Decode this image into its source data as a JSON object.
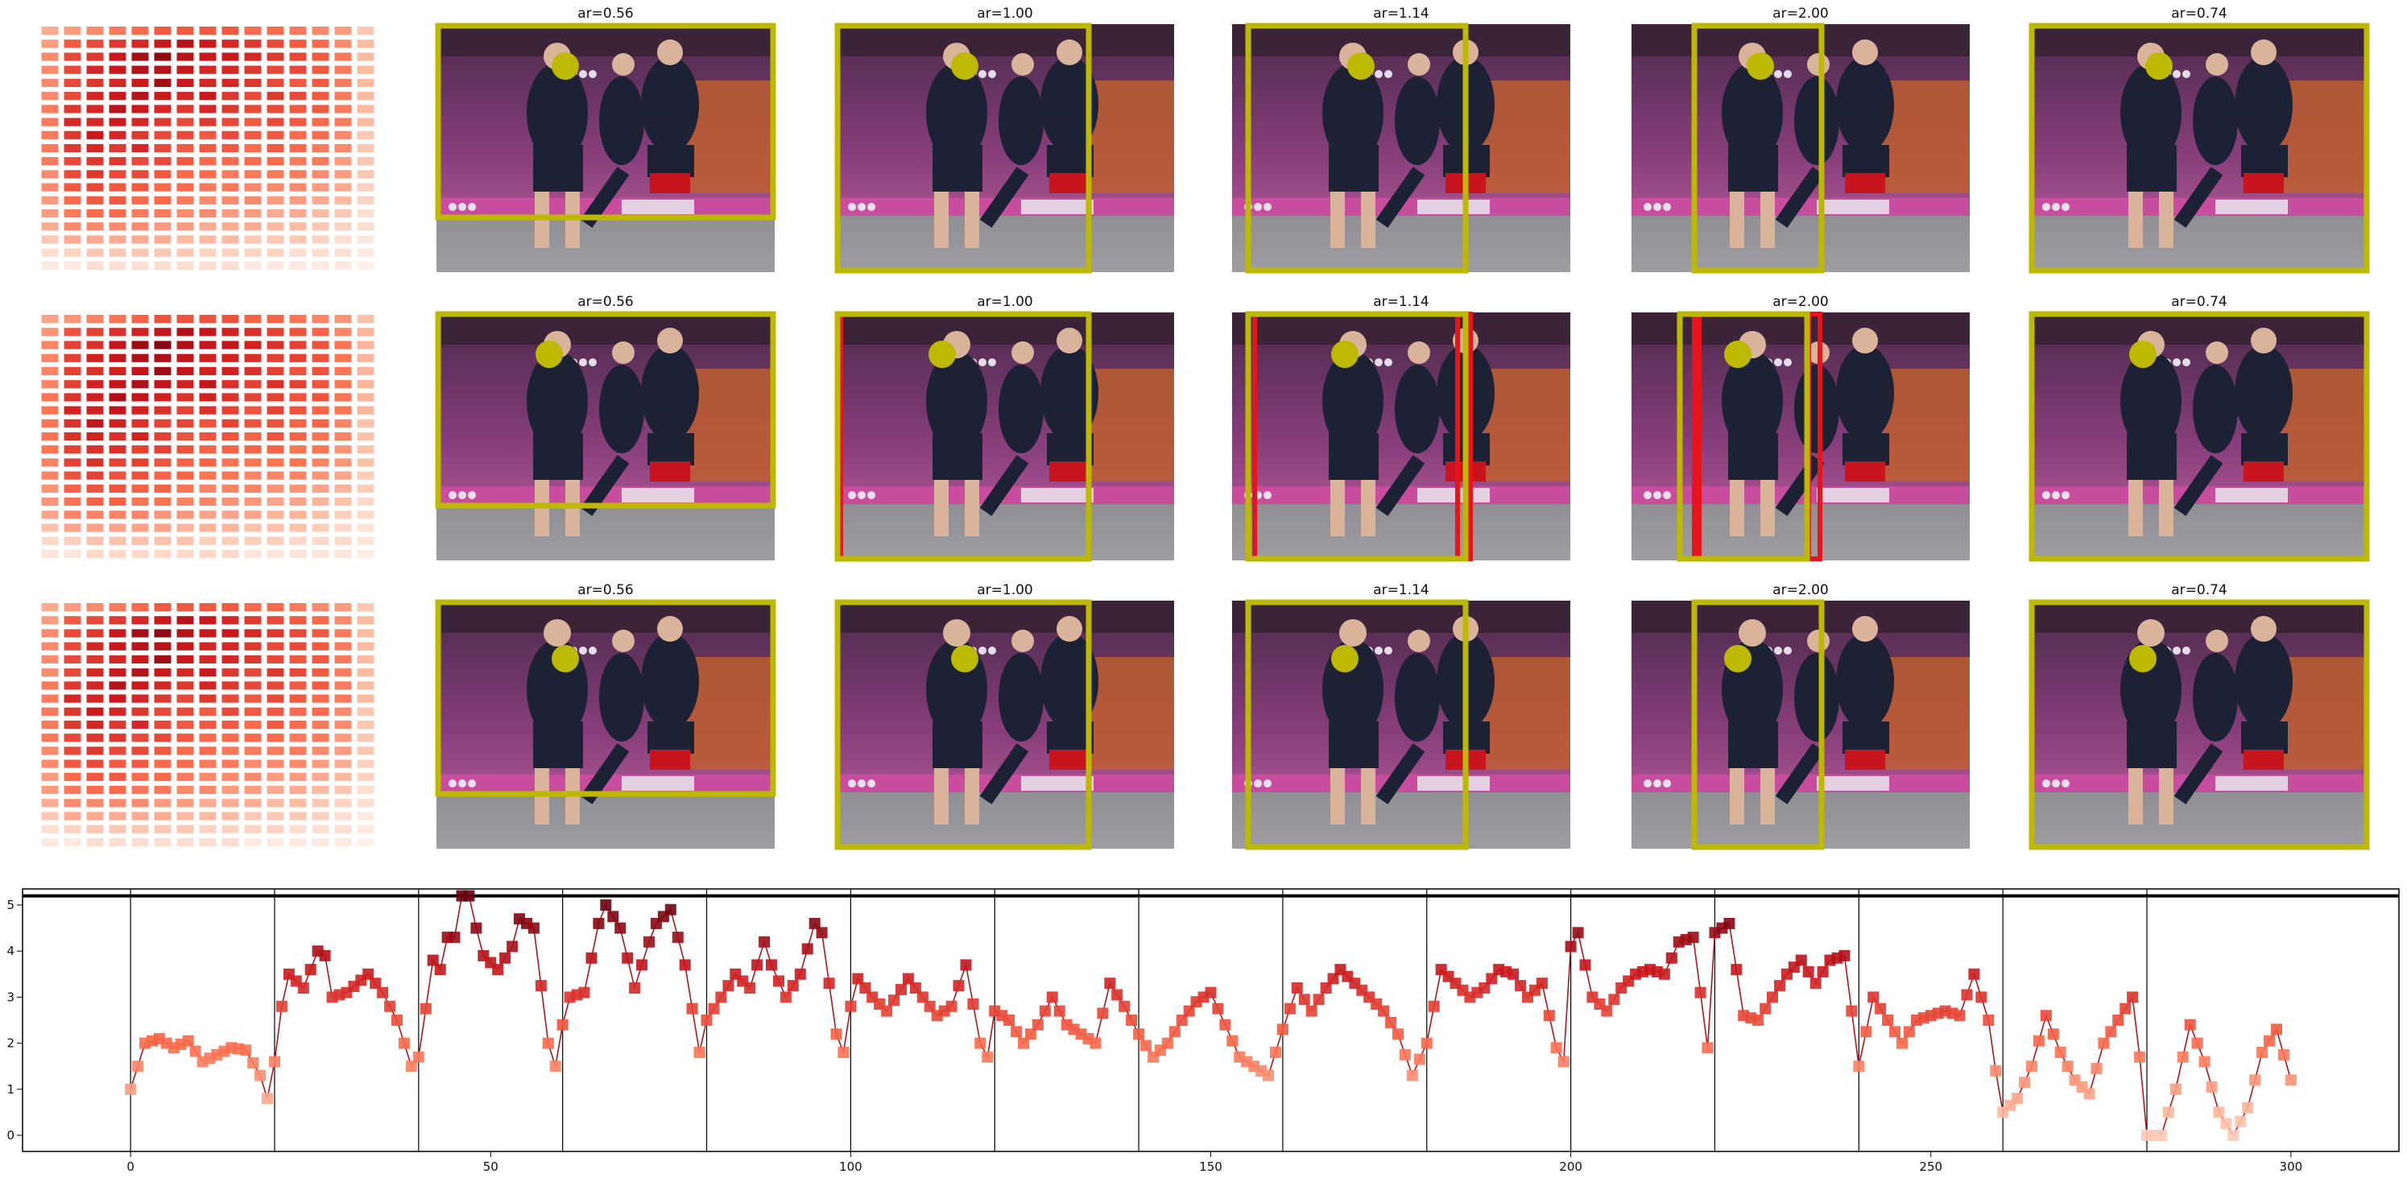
{
  "panels": {
    "titles": [
      "ar=0.56",
      "ar=1.00",
      "ar=1.14",
      "ar=2.00",
      "ar=0.74"
    ],
    "photo_alt": "Basketball players celebrating in front of purple Olympic stands",
    "colors": {
      "box": "#bdb800",
      "dot": "#bdb800",
      "alt_box": "#e8141c"
    }
  },
  "heatmap": {
    "rows": 19,
    "cols": 15,
    "values": [
      [
        0.3,
        0.35,
        0.4,
        0.45,
        0.5,
        0.55,
        0.55,
        0.55,
        0.55,
        0.5,
        0.5,
        0.45,
        0.4,
        0.35,
        0.2
      ],
      [
        0.35,
        0.55,
        0.6,
        0.65,
        0.7,
        0.75,
        0.8,
        0.75,
        0.7,
        0.65,
        0.6,
        0.55,
        0.5,
        0.4,
        0.25
      ],
      [
        0.4,
        0.6,
        0.65,
        0.75,
        0.85,
        0.9,
        0.8,
        0.75,
        0.75,
        0.7,
        0.65,
        0.6,
        0.55,
        0.45,
        0.25
      ],
      [
        0.4,
        0.6,
        0.7,
        0.75,
        0.8,
        0.8,
        0.75,
        0.7,
        0.7,
        0.65,
        0.6,
        0.6,
        0.55,
        0.45,
        0.25
      ],
      [
        0.4,
        0.6,
        0.65,
        0.7,
        0.75,
        0.85,
        0.75,
        0.7,
        0.7,
        0.65,
        0.6,
        0.55,
        0.55,
        0.45,
        0.25
      ],
      [
        0.4,
        0.6,
        0.7,
        0.75,
        0.8,
        0.75,
        0.7,
        0.75,
        0.65,
        0.6,
        0.65,
        0.6,
        0.55,
        0.45,
        0.25
      ],
      [
        0.45,
        0.65,
        0.7,
        0.8,
        0.75,
        0.7,
        0.65,
        0.7,
        0.65,
        0.6,
        0.6,
        0.55,
        0.55,
        0.45,
        0.25
      ],
      [
        0.45,
        0.7,
        0.7,
        0.75,
        0.7,
        0.65,
        0.6,
        0.65,
        0.6,
        0.55,
        0.6,
        0.55,
        0.5,
        0.45,
        0.25
      ],
      [
        0.45,
        0.65,
        0.75,
        0.7,
        0.65,
        0.6,
        0.6,
        0.55,
        0.6,
        0.55,
        0.55,
        0.5,
        0.5,
        0.4,
        0.2
      ],
      [
        0.45,
        0.65,
        0.7,
        0.65,
        0.7,
        0.6,
        0.55,
        0.55,
        0.55,
        0.5,
        0.55,
        0.5,
        0.45,
        0.4,
        0.2
      ],
      [
        0.45,
        0.6,
        0.65,
        0.65,
        0.6,
        0.6,
        0.55,
        0.5,
        0.5,
        0.5,
        0.5,
        0.45,
        0.45,
        0.35,
        0.2
      ],
      [
        0.4,
        0.6,
        0.65,
        0.6,
        0.6,
        0.55,
        0.5,
        0.5,
        0.45,
        0.45,
        0.45,
        0.45,
        0.4,
        0.35,
        0.2
      ],
      [
        0.4,
        0.55,
        0.6,
        0.55,
        0.55,
        0.5,
        0.5,
        0.45,
        0.45,
        0.4,
        0.4,
        0.4,
        0.35,
        0.3,
        0.15
      ],
      [
        0.35,
        0.5,
        0.55,
        0.55,
        0.5,
        0.5,
        0.45,
        0.4,
        0.4,
        0.4,
        0.35,
        0.35,
        0.3,
        0.25,
        0.15
      ],
      [
        0.35,
        0.45,
        0.5,
        0.5,
        0.45,
        0.45,
        0.4,
        0.4,
        0.35,
        0.35,
        0.3,
        0.3,
        0.25,
        0.2,
        0.1
      ],
      [
        0.3,
        0.4,
        0.4,
        0.4,
        0.4,
        0.35,
        0.35,
        0.3,
        0.3,
        0.3,
        0.25,
        0.25,
        0.2,
        0.15,
        0.1
      ],
      [
        0.2,
        0.3,
        0.3,
        0.3,
        0.3,
        0.3,
        0.25,
        0.25,
        0.25,
        0.2,
        0.2,
        0.2,
        0.15,
        0.1,
        0.05
      ],
      [
        0.1,
        0.15,
        0.2,
        0.2,
        0.2,
        0.2,
        0.2,
        0.15,
        0.15,
        0.15,
        0.15,
        0.1,
        0.1,
        0.1,
        0.05
      ],
      [
        0.05,
        0.05,
        0.1,
        0.1,
        0.1,
        0.1,
        0.1,
        0.1,
        0.1,
        0.05,
        0.05,
        0.05,
        0.05,
        0.05,
        0.02
      ]
    ]
  },
  "chart_data": {
    "type": "line",
    "title": "",
    "xlabel": "",
    "ylabel": "",
    "xlim": [
      -15,
      315
    ],
    "ylim": [
      -0.35,
      5.35
    ],
    "xticks": [
      0,
      50,
      100,
      150,
      200,
      250,
      300
    ],
    "yticks": [
      0,
      1,
      2,
      3,
      4,
      5
    ],
    "threshold_y": 5.2,
    "vlines": [
      0,
      20,
      40,
      60,
      80,
      100,
      120,
      140,
      160,
      180,
      200,
      220,
      240,
      260,
      280
    ],
    "grid": false,
    "line_color": "#b3141c",
    "keypoints": [
      [
        0,
        1.0
      ],
      [
        2,
        2.0
      ],
      [
        4,
        2.1
      ],
      [
        6,
        1.9
      ],
      [
        8,
        2.05
      ],
      [
        10,
        1.6
      ],
      [
        12,
        1.75
      ],
      [
        14,
        1.9
      ],
      [
        16,
        1.85
      ],
      [
        18,
        1.3
      ],
      [
        19,
        0.8
      ],
      [
        20,
        1.6
      ],
      [
        21,
        2.8
      ],
      [
        22,
        3.5
      ],
      [
        24,
        3.2
      ],
      [
        26,
        4.0
      ],
      [
        27,
        3.9
      ],
      [
        28,
        3.0
      ],
      [
        30,
        3.1
      ],
      [
        33,
        3.5
      ],
      [
        35,
        3.1
      ],
      [
        37,
        2.5
      ],
      [
        39,
        1.5
      ],
      [
        40,
        1.7
      ],
      [
        42,
        3.8
      ],
      [
        43,
        3.6
      ],
      [
        44,
        4.3
      ],
      [
        45,
        4.3
      ],
      [
        46,
        5.2
      ],
      [
        47,
        5.2
      ],
      [
        48,
        4.5
      ],
      [
        49,
        3.9
      ],
      [
        51,
        3.6
      ],
      [
        53,
        4.1
      ],
      [
        54,
        4.7
      ],
      [
        56,
        4.5
      ],
      [
        58,
        2.0
      ],
      [
        59,
        1.5
      ],
      [
        60,
        2.4
      ],
      [
        61,
        3.0
      ],
      [
        63,
        3.1
      ],
      [
        65,
        4.6
      ],
      [
        66,
        5.0
      ],
      [
        68,
        4.5
      ],
      [
        70,
        3.2
      ],
      [
        72,
        4.2
      ],
      [
        73,
        4.6
      ],
      [
        75,
        4.9
      ],
      [
        77,
        3.7
      ],
      [
        79,
        1.8
      ],
      [
        80,
        2.5
      ],
      [
        82,
        3.0
      ],
      [
        84,
        3.5
      ],
      [
        86,
        3.2
      ],
      [
        88,
        4.2
      ],
      [
        89,
        3.7
      ],
      [
        91,
        3.0
      ],
      [
        93,
        3.5
      ],
      [
        95,
        4.6
      ],
      [
        96,
        4.4
      ],
      [
        98,
        2.2
      ],
      [
        99,
        1.8
      ],
      [
        100,
        2.8
      ],
      [
        101,
        3.4
      ],
      [
        103,
        3.0
      ],
      [
        105,
        2.7
      ],
      [
        108,
        3.4
      ],
      [
        110,
        3.0
      ],
      [
        112,
        2.6
      ],
      [
        114,
        2.8
      ],
      [
        116,
        3.7
      ],
      [
        118,
        2.0
      ],
      [
        119,
        1.7
      ],
      [
        120,
        2.7
      ],
      [
        122,
        2.5
      ],
      [
        124,
        2.0
      ],
      [
        126,
        2.4
      ],
      [
        128,
        3.0
      ],
      [
        130,
        2.4
      ],
      [
        132,
        2.2
      ],
      [
        134,
        2.0
      ],
      [
        136,
        3.3
      ],
      [
        138,
        2.8
      ],
      [
        140,
        2.2
      ],
      [
        142,
        1.7
      ],
      [
        144,
        2.0
      ],
      [
        146,
        2.5
      ],
      [
        148,
        2.9
      ],
      [
        150,
        3.1
      ],
      [
        152,
        2.4
      ],
      [
        154,
        1.7
      ],
      [
        156,
        1.5
      ],
      [
        158,
        1.3
      ],
      [
        160,
        2.3
      ],
      [
        162,
        3.2
      ],
      [
        164,
        2.7
      ],
      [
        166,
        3.2
      ],
      [
        168,
        3.6
      ],
      [
        170,
        3.3
      ],
      [
        172,
        3.0
      ],
      [
        174,
        2.7
      ],
      [
        176,
        2.2
      ],
      [
        178,
        1.3
      ],
      [
        180,
        2.0
      ],
      [
        182,
        3.6
      ],
      [
        184,
        3.3
      ],
      [
        186,
        3.0
      ],
      [
        188,
        3.2
      ],
      [
        190,
        3.6
      ],
      [
        192,
        3.5
      ],
      [
        194,
        3.0
      ],
      [
        196,
        3.3
      ],
      [
        198,
        1.9
      ],
      [
        199,
        1.6
      ],
      [
        200,
        4.1
      ],
      [
        201,
        4.4
      ],
      [
        203,
        3.0
      ],
      [
        205,
        2.7
      ],
      [
        207,
        3.2
      ],
      [
        209,
        3.5
      ],
      [
        211,
        3.6
      ],
      [
        213,
        3.5
      ],
      [
        215,
        4.2
      ],
      [
        217,
        4.3
      ],
      [
        219,
        1.9
      ],
      [
        220,
        4.4
      ],
      [
        222,
        4.6
      ],
      [
        224,
        2.6
      ],
      [
        226,
        2.5
      ],
      [
        228,
        3.0
      ],
      [
        230,
        3.5
      ],
      [
        232,
        3.8
      ],
      [
        234,
        3.3
      ],
      [
        236,
        3.8
      ],
      [
        238,
        3.9
      ],
      [
        240,
        1.5
      ],
      [
        242,
        3.0
      ],
      [
        244,
        2.5
      ],
      [
        246,
        2.0
      ],
      [
        248,
        2.5
      ],
      [
        250,
        2.6
      ],
      [
        252,
        2.7
      ],
      [
        254,
        2.6
      ],
      [
        256,
        3.5
      ],
      [
        258,
        2.5
      ],
      [
        259,
        1.4
      ],
      [
        260,
        0.5
      ],
      [
        262,
        0.8
      ],
      [
        264,
        1.5
      ],
      [
        266,
        2.6
      ],
      [
        268,
        1.8
      ],
      [
        270,
        1.2
      ],
      [
        272,
        0.9
      ],
      [
        274,
        2.0
      ],
      [
        276,
        2.5
      ],
      [
        278,
        3.0
      ],
      [
        279,
        1.7
      ],
      [
        280,
        0.0
      ],
      [
        282,
        0.0
      ],
      [
        284,
        1.0
      ],
      [
        286,
        2.4
      ],
      [
        288,
        1.6
      ],
      [
        290,
        0.5
      ],
      [
        292,
        0.0
      ],
      [
        294,
        0.6
      ],
      [
        296,
        1.8
      ],
      [
        298,
        2.3
      ],
      [
        300,
        1.2
      ]
    ]
  }
}
